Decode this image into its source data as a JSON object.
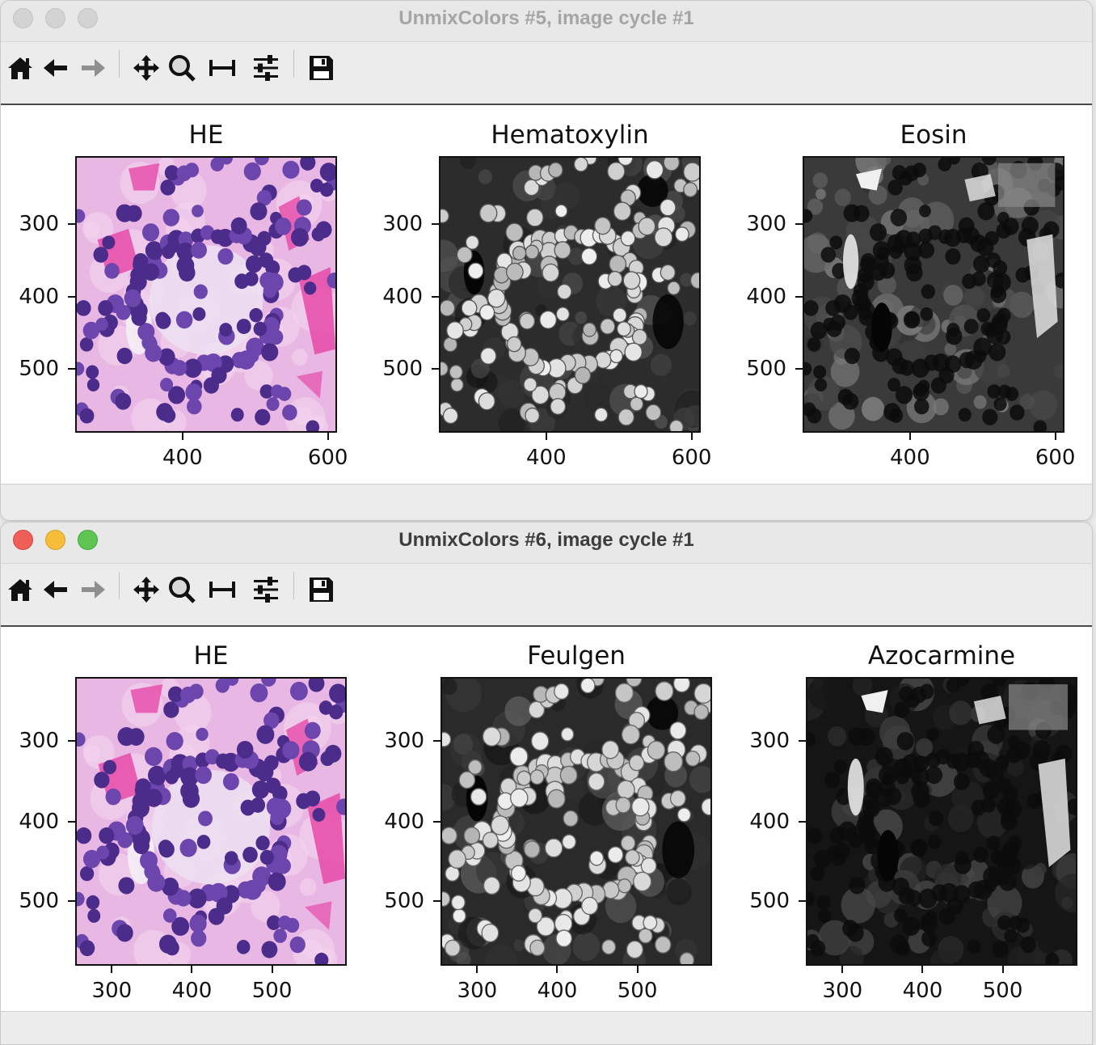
{
  "windows": [
    {
      "id": "win1",
      "title": "UnmixColors #5, image cycle #1",
      "state": "inactive",
      "toolbar": [
        "home-icon",
        "back-arrow-icon",
        "forward-arrow-icon",
        "pan-icon",
        "zoom-icon",
        "subplots-icon",
        "configure-icon",
        "save-icon"
      ],
      "panels": [
        {
          "title": "HE",
          "kind": "he",
          "yticks": [
            "300",
            "400",
            "500"
          ],
          "xticks": [
            "400",
            "600"
          ]
        },
        {
          "title": "Hematoxylin",
          "kind": "hematoxylin",
          "yticks": [
            "300",
            "400",
            "500"
          ],
          "xticks": [
            "400",
            "600"
          ]
        },
        {
          "title": "Eosin",
          "kind": "eosin",
          "yticks": [
            "300",
            "400",
            "500"
          ],
          "xticks": [
            "400",
            "600"
          ]
        }
      ]
    },
    {
      "id": "win2",
      "title": "UnmixColors #6, image cycle #1",
      "state": "active",
      "toolbar": [
        "home-icon",
        "back-arrow-icon",
        "forward-arrow-icon",
        "pan-icon",
        "zoom-icon",
        "subplots-icon",
        "configure-icon",
        "save-icon"
      ],
      "panels": [
        {
          "title": "HE",
          "kind": "he",
          "yticks": [
            "300",
            "400",
            "500"
          ],
          "xticks": [
            "300",
            "400",
            "500"
          ]
        },
        {
          "title": "Feulgen",
          "kind": "feulgen",
          "yticks": [
            "300",
            "400",
            "500"
          ],
          "xticks": [
            "300",
            "400",
            "500"
          ]
        },
        {
          "title": "Azocarmine",
          "kind": "azocarmine",
          "yticks": [
            "300",
            "400",
            "500"
          ],
          "xticks": [
            "300",
            "400",
            "500"
          ]
        }
      ]
    }
  ],
  "colors": {
    "he_background": "#e8b7e3",
    "he_nucleus": "#6c45ad",
    "he_nucleus_dark": "#4b2c8a",
    "he_eosin": "#e64aa8",
    "he_lumen": "#f4eef6"
  }
}
